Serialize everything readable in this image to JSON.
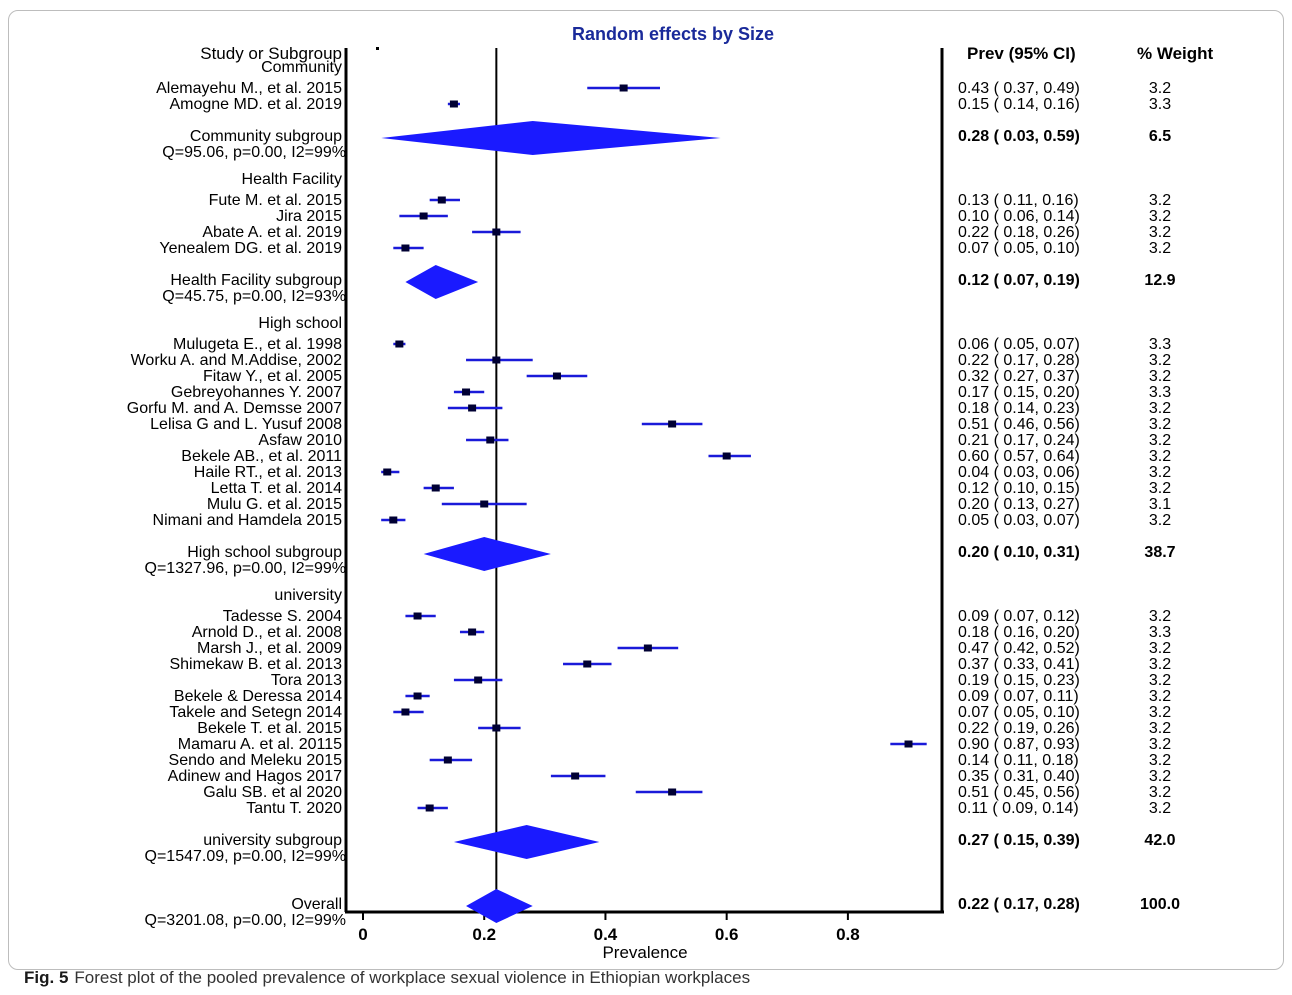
{
  "figure": {
    "caption_label": "Fig. 5",
    "caption_text": "Forest plot of the pooled prevalence of workplace sexual violence in Ethiopian workplaces"
  },
  "chart_data": {
    "type": "forest",
    "title": "Random effects by Size",
    "xlabel": "Prevalence",
    "xlim": [
      0,
      0.98
    ],
    "x_ticks": [
      0,
      0.2,
      0.4,
      0.6,
      0.8
    ],
    "x_tick_labels": [
      "0",
      "0.2",
      "0.4",
      "0.6",
      "0.8"
    ],
    "reference_line": 0.22,
    "column_headers": {
      "study": "Study or Subgroup",
      "estimate": "Prev (95% CI)",
      "weight": "% Weight"
    },
    "colors": {
      "diamond": "#1a1aff",
      "ci_line": "#1a1ad9",
      "point": "#000033",
      "title": "#1a2a9a"
    },
    "rows": [
      {
        "kind": "group",
        "label": "Community"
      },
      {
        "kind": "study",
        "label": "Alemayehu M., et al. 2015",
        "est": 0.43,
        "lo": 0.37,
        "hi": 0.49,
        "prev_text": "0.43  (  0.37,  0.49)",
        "weight": "3.2"
      },
      {
        "kind": "study",
        "label": "Amogne MD. et al. 2019",
        "est": 0.15,
        "lo": 0.14,
        "hi": 0.16,
        "prev_text": "0.15  (  0.14,  0.16)",
        "weight": "3.3"
      },
      {
        "kind": "subtotal",
        "label": "Community  subgroup",
        "het": "Q=95.06, p=0.00, I2=99%",
        "est": 0.28,
        "lo": 0.03,
        "hi": 0.59,
        "prev_text": "0.28  (  0.03,  0.59)",
        "weight": "6.5"
      },
      {
        "kind": "group",
        "label": "Health Facility"
      },
      {
        "kind": "study",
        "label": "Fute M. et al. 2015",
        "est": 0.13,
        "lo": 0.11,
        "hi": 0.16,
        "prev_text": "0.13  (  0.11,  0.16)",
        "weight": "3.2"
      },
      {
        "kind": "study",
        "label": "Jira 2015",
        "est": 0.1,
        "lo": 0.06,
        "hi": 0.14,
        "prev_text": "0.10  (  0.06,  0.14)",
        "weight": "3.2"
      },
      {
        "kind": "study",
        "label": "Abate A. et al. 2019",
        "est": 0.22,
        "lo": 0.18,
        "hi": 0.26,
        "prev_text": "0.22  (  0.18,  0.26)",
        "weight": "3.2"
      },
      {
        "kind": "study",
        "label": "Yenealem DG. et al. 2019",
        "est": 0.07,
        "lo": 0.05,
        "hi": 0.1,
        "prev_text": "0.07  (  0.05,  0.10)",
        "weight": "3.2"
      },
      {
        "kind": "subtotal",
        "label": "Health Facility subgroup",
        "het": "Q=45.75, p=0.00, I2=93%",
        "est": 0.12,
        "lo": 0.07,
        "hi": 0.19,
        "prev_text": "0.12  (  0.07,  0.19)",
        "weight": "12.9"
      },
      {
        "kind": "group",
        "label": "High school"
      },
      {
        "kind": "study",
        "label": "Mulugeta E., et al. 1998",
        "est": 0.06,
        "lo": 0.05,
        "hi": 0.07,
        "prev_text": "0.06  (  0.05,  0.07)",
        "weight": "3.3"
      },
      {
        "kind": "study",
        "label": "Worku A. and M.Addise, 2002",
        "est": 0.22,
        "lo": 0.17,
        "hi": 0.28,
        "prev_text": "0.22  (  0.17,  0.28)",
        "weight": "3.2"
      },
      {
        "kind": "study",
        "label": "Fitaw Y., et al. 2005",
        "est": 0.32,
        "lo": 0.27,
        "hi": 0.37,
        "prev_text": "0.32  (  0.27,  0.37)",
        "weight": "3.2"
      },
      {
        "kind": "study",
        "label": "Gebreyohannes Y. 2007",
        "est": 0.17,
        "lo": 0.15,
        "hi": 0.2,
        "prev_text": "0.17  (  0.15,  0.20)",
        "weight": "3.3"
      },
      {
        "kind": "study",
        "label": "Gorfu M. and A. Demsse 2007",
        "est": 0.18,
        "lo": 0.14,
        "hi": 0.23,
        "prev_text": "0.18  (  0.14,  0.23)",
        "weight": "3.2"
      },
      {
        "kind": "study",
        "label": "Lelisa G and L. Yusuf 2008",
        "est": 0.51,
        "lo": 0.46,
        "hi": 0.56,
        "prev_text": "0.51  (  0.46,  0.56)",
        "weight": "3.2"
      },
      {
        "kind": "study",
        "label": "Asfaw 2010",
        "est": 0.21,
        "lo": 0.17,
        "hi": 0.24,
        "prev_text": "0.21  (  0.17,  0.24)",
        "weight": "3.2"
      },
      {
        "kind": "study",
        "label": "Bekele AB., et al. 2011",
        "est": 0.6,
        "lo": 0.57,
        "hi": 0.64,
        "prev_text": "0.60  (  0.57,  0.64)",
        "weight": "3.2"
      },
      {
        "kind": "study",
        "label": "Haile RT., et al. 2013",
        "est": 0.04,
        "lo": 0.03,
        "hi": 0.06,
        "prev_text": "0.04  (  0.03,  0.06)",
        "weight": "3.2"
      },
      {
        "kind": "study",
        "label": "Letta T. et al. 2014",
        "est": 0.12,
        "lo": 0.1,
        "hi": 0.15,
        "prev_text": "0.12  (  0.10,  0.15)",
        "weight": "3.2"
      },
      {
        "kind": "study",
        "label": "Mulu G. et al. 2015",
        "est": 0.2,
        "lo": 0.13,
        "hi": 0.27,
        "prev_text": "0.20  (  0.13,  0.27)",
        "weight": "3.1"
      },
      {
        "kind": "study",
        "label": "Nimani and Hamdela 2015",
        "est": 0.05,
        "lo": 0.03,
        "hi": 0.07,
        "prev_text": "0.05  (  0.03,  0.07)",
        "weight": "3.2"
      },
      {
        "kind": "subtotal",
        "label": "High school subgroup",
        "het": "Q=1327.96, p=0.00, I2=99%",
        "est": 0.2,
        "lo": 0.1,
        "hi": 0.31,
        "prev_text": "0.20  (  0.10,  0.31)",
        "weight": "38.7"
      },
      {
        "kind": "group",
        "label": "university"
      },
      {
        "kind": "study",
        "label": "Tadesse S. 2004",
        "est": 0.09,
        "lo": 0.07,
        "hi": 0.12,
        "prev_text": "0.09  (  0.07,  0.12)",
        "weight": "3.2"
      },
      {
        "kind": "study",
        "label": "Arnold D., et al. 2008",
        "est": 0.18,
        "lo": 0.16,
        "hi": 0.2,
        "prev_text": "0.18  (  0.16,  0.20)",
        "weight": "3.3"
      },
      {
        "kind": "study",
        "label": "Marsh J., et al. 2009",
        "est": 0.47,
        "lo": 0.42,
        "hi": 0.52,
        "prev_text": "0.47  (  0.42,  0.52)",
        "weight": "3.2"
      },
      {
        "kind": "study",
        "label": "Shimekaw B. et al. 2013",
        "est": 0.37,
        "lo": 0.33,
        "hi": 0.41,
        "prev_text": "0.37  (  0.33,  0.41)",
        "weight": "3.2"
      },
      {
        "kind": "study",
        "label": "Tora 2013",
        "est": 0.19,
        "lo": 0.15,
        "hi": 0.23,
        "prev_text": "0.19  (  0.15,  0.23)",
        "weight": "3.2"
      },
      {
        "kind": "study",
        "label": "Bekele & Deressa 2014",
        "est": 0.09,
        "lo": 0.07,
        "hi": 0.11,
        "prev_text": "0.09  (  0.07,  0.11)",
        "weight": "3.2"
      },
      {
        "kind": "study",
        "label": "Takele and Setegn 2014",
        "est": 0.07,
        "lo": 0.05,
        "hi": 0.1,
        "prev_text": "0.07  (  0.05,  0.10)",
        "weight": "3.2"
      },
      {
        "kind": "study",
        "label": "Bekele T. et al. 2015",
        "est": 0.22,
        "lo": 0.19,
        "hi": 0.26,
        "prev_text": "0.22  (  0.19,  0.26)",
        "weight": "3.2"
      },
      {
        "kind": "study",
        "label": "Mamaru A. et al. 20115",
        "est": 0.9,
        "lo": 0.87,
        "hi": 0.93,
        "prev_text": "0.90  (  0.87,  0.93)",
        "weight": "3.2"
      },
      {
        "kind": "study",
        "label": "Sendo and Meleku 2015",
        "est": 0.14,
        "lo": 0.11,
        "hi": 0.18,
        "prev_text": "0.14  (  0.11,  0.18)",
        "weight": "3.2"
      },
      {
        "kind": "study",
        "label": "Adinew and Hagos 2017",
        "est": 0.35,
        "lo": 0.31,
        "hi": 0.4,
        "prev_text": "0.35  (  0.31,  0.40)",
        "weight": "3.2"
      },
      {
        "kind": "study",
        "label": "Galu SB. et al 2020",
        "est": 0.51,
        "lo": 0.45,
        "hi": 0.56,
        "prev_text": "0.51  (  0.45,  0.56)",
        "weight": "3.2"
      },
      {
        "kind": "study",
        "label": "Tantu T. 2020",
        "est": 0.11,
        "lo": 0.09,
        "hi": 0.14,
        "prev_text": "0.11  (  0.09,  0.14)",
        "weight": "3.2"
      },
      {
        "kind": "subtotal",
        "label": "university subgroup",
        "het": "Q=1547.09, p=0.00, I2=99%",
        "est": 0.27,
        "lo": 0.15,
        "hi": 0.39,
        "prev_text": "0.27  (  0.15,  0.39)",
        "weight": "42.0"
      },
      {
        "kind": "overall",
        "label": "Overall",
        "het": "Q=3201.08, p=0.00, I2=99%",
        "est": 0.22,
        "lo": 0.17,
        "hi": 0.28,
        "prev_text": "0.22  (  0.17,  0.28)",
        "weight": "100.0"
      }
    ]
  }
}
